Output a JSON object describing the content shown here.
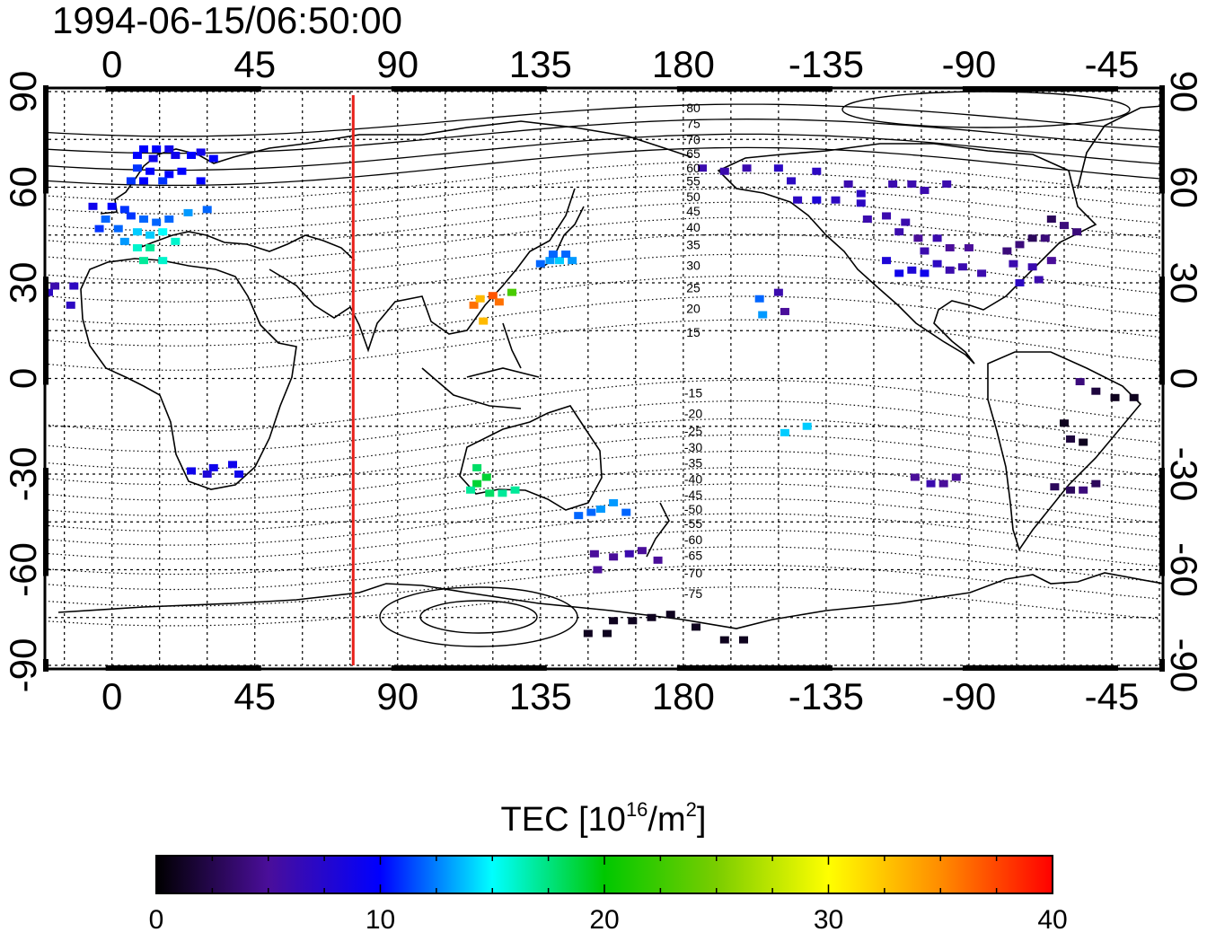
{
  "title": "1994-06-15/06:50:00",
  "map": {
    "lon_range": [
      -20,
      330
    ],
    "lat_range": [
      -90,
      90
    ],
    "lon_ticks": [
      0,
      45,
      90,
      135,
      180,
      225,
      270,
      315
    ],
    "lon_tick_labels": [
      "0",
      "45",
      "90",
      "135",
      "180",
      "-135",
      "-90",
      "-45"
    ],
    "lat_ticks": [
      90,
      60,
      30,
      0,
      -30,
      -60,
      -90
    ],
    "lat_tick_labels": [
      "90",
      "60",
      "30",
      "0",
      "-30",
      "-60",
      "-90"
    ],
    "grid": "dashed every 15 degrees",
    "meridian_line": {
      "lon": 76,
      "color": "#e8211a"
    },
    "contour_labels": [
      {
        "text": "80",
        "lat": 85
      },
      {
        "text": "75",
        "lat": 80
      },
      {
        "text": "70",
        "lat": 75
      },
      {
        "text": "65",
        "lat": 70.5
      },
      {
        "text": "60",
        "lat": 66
      },
      {
        "text": "55",
        "lat": 62
      },
      {
        "text": "50",
        "lat": 57
      },
      {
        "text": "45",
        "lat": 52.5
      },
      {
        "text": "40",
        "lat": 47.5
      },
      {
        "text": "35",
        "lat": 42
      },
      {
        "text": "30",
        "lat": 35.5
      },
      {
        "text": "25",
        "lat": 28.5
      },
      {
        "text": "20",
        "lat": 22
      },
      {
        "text": "15",
        "lat": 14.5
      },
      {
        "text": "-15",
        "lat": -4.5
      },
      {
        "text": "-20",
        "lat": -11
      },
      {
        "text": "-25",
        "lat": -16.5
      },
      {
        "text": "-30",
        "lat": -21.5
      },
      {
        "text": "-35",
        "lat": -26.5
      },
      {
        "text": "-40",
        "lat": -31.5
      },
      {
        "text": "-45",
        "lat": -36.5
      },
      {
        "text": "-50",
        "lat": -41
      },
      {
        "text": "-55",
        "lat": -45.5
      },
      {
        "text": "-60",
        "lat": -50.5
      },
      {
        "text": "-65",
        "lat": -55.5
      },
      {
        "text": "-70",
        "lat": -61
      },
      {
        "text": "-75",
        "lat": -67.5
      }
    ]
  },
  "tec_points": [
    [
      10,
      72,
      10
    ],
    [
      14,
      72,
      10
    ],
    [
      18,
      72,
      9
    ],
    [
      8,
      70,
      10
    ],
    [
      13,
      69,
      9
    ],
    [
      20,
      70,
      9
    ],
    [
      25,
      70,
      10
    ],
    [
      28,
      71,
      9
    ],
    [
      32,
      69,
      10
    ],
    [
      8,
      66,
      11
    ],
    [
      12,
      65,
      10
    ],
    [
      18,
      64,
      10
    ],
    [
      22,
      65,
      10
    ],
    [
      6,
      62,
      11
    ],
    [
      10,
      62,
      10
    ],
    [
      16,
      62,
      11
    ],
    [
      28,
      62,
      10
    ],
    [
      -6,
      54,
      9
    ],
    [
      0,
      54,
      10
    ],
    [
      4,
      53,
      11
    ],
    [
      -2,
      50,
      12
    ],
    [
      6,
      51,
      11
    ],
    [
      10,
      50,
      12
    ],
    [
      14,
      49,
      12
    ],
    [
      18,
      50,
      12
    ],
    [
      24,
      52,
      13
    ],
    [
      30,
      53,
      12
    ],
    [
      -4,
      47,
      11
    ],
    [
      2,
      47,
      12
    ],
    [
      8,
      46,
      14
    ],
    [
      12,
      45,
      14
    ],
    [
      16,
      46,
      15
    ],
    [
      20,
      43,
      16
    ],
    [
      4,
      43,
      13
    ],
    [
      8,
      41,
      16
    ],
    [
      12,
      41,
      17
    ],
    [
      10,
      37,
      17
    ],
    [
      16,
      37,
      16
    ],
    [
      -18,
      29,
      6
    ],
    [
      -12,
      29,
      7
    ],
    [
      -20,
      27,
      7
    ],
    [
      -13,
      23,
      7
    ],
    [
      25,
      -29,
      9
    ],
    [
      30,
      -30,
      8
    ],
    [
      32,
      -28,
      9
    ],
    [
      38,
      -27,
      9
    ],
    [
      40,
      -30,
      9
    ],
    [
      114,
      23,
      36
    ],
    [
      116,
      25,
      33
    ],
    [
      120,
      26,
      37
    ],
    [
      122,
      24,
      36
    ],
    [
      126,
      27,
      23
    ],
    [
      117,
      18,
      33
    ],
    [
      135,
      36,
      12
    ],
    [
      138,
      37,
      13
    ],
    [
      141,
      37,
      14
    ],
    [
      145,
      37,
      13
    ],
    [
      139,
      39,
      12
    ],
    [
      143,
      39,
      12
    ],
    [
      115,
      -28,
      18
    ],
    [
      115,
      -33,
      19
    ],
    [
      119,
      -36,
      18
    ],
    [
      123,
      -36,
      17
    ],
    [
      127,
      -35,
      17
    ],
    [
      118,
      -31,
      19
    ],
    [
      113,
      -35,
      17
    ],
    [
      147,
      -43,
      12
    ],
    [
      151,
      -42,
      12
    ],
    [
      154,
      -41,
      13
    ],
    [
      158,
      -39,
      13
    ],
    [
      162,
      -42,
      12
    ],
    [
      152,
      -55,
      5
    ],
    [
      158,
      -56,
      5
    ],
    [
      163,
      -55,
      6
    ],
    [
      167,
      -54,
      5
    ],
    [
      172,
      -57,
      5
    ],
    [
      153,
      -60,
      5
    ],
    [
      158,
      -76,
      1
    ],
    [
      164,
      -76,
      1
    ],
    [
      170,
      -75,
      1
    ],
    [
      176,
      -74,
      1
    ],
    [
      150,
      -80,
      1
    ],
    [
      156,
      -80,
      1
    ],
    [
      184,
      -78,
      1
    ],
    [
      193,
      -82,
      1
    ],
    [
      199,
      -82,
      1
    ],
    [
      186,
      66,
      6
    ],
    [
      193,
      65,
      6
    ],
    [
      200,
      66,
      6
    ],
    [
      210,
      66,
      7
    ],
    [
      214,
      62,
      7
    ],
    [
      222,
      65,
      7
    ],
    [
      232,
      61,
      6
    ],
    [
      246,
      61,
      6
    ],
    [
      252,
      61,
      6
    ],
    [
      256,
      59,
      6
    ],
    [
      263,
      61,
      6
    ],
    [
      216,
      56,
      7
    ],
    [
      222,
      56,
      8
    ],
    [
      228,
      56,
      7
    ],
    [
      236,
      55,
      7
    ],
    [
      236,
      58,
      7
    ],
    [
      238,
      50,
      6
    ],
    [
      244,
      51,
      6
    ],
    [
      250,
      49,
      6
    ],
    [
      248,
      46,
      6
    ],
    [
      254,
      44,
      5
    ],
    [
      260,
      44,
      6
    ],
    [
      256,
      40,
      6
    ],
    [
      264,
      41,
      5
    ],
    [
      270,
      41,
      5
    ],
    [
      244,
      37,
      8
    ],
    [
      248,
      33,
      9
    ],
    [
      252,
      34,
      8
    ],
    [
      256,
      33,
      9
    ],
    [
      260,
      36,
      7
    ],
    [
      264,
      34,
      6
    ],
    [
      268,
      35,
      6
    ],
    [
      274,
      33,
      6
    ],
    [
      282,
      40,
      4
    ],
    [
      286,
      42,
      4
    ],
    [
      290,
      44,
      3
    ],
    [
      294,
      44,
      4
    ],
    [
      300,
      48,
      4
    ],
    [
      304,
      46,
      4
    ],
    [
      296,
      50,
      3
    ],
    [
      284,
      36,
      6
    ],
    [
      290,
      35,
      6
    ],
    [
      296,
      37,
      5
    ],
    [
      286,
      30,
      7
    ],
    [
      292,
      31,
      6
    ],
    [
      204,
      25,
      12
    ],
    [
      210,
      27,
      6
    ],
    [
      205,
      20,
      13
    ],
    [
      212,
      21,
      5
    ],
    [
      212,
      -17,
      14
    ],
    [
      219,
      -15,
      14
    ],
    [
      253,
      -31,
      5
    ],
    [
      258,
      -33,
      6
    ],
    [
      262,
      -33,
      5
    ],
    [
      266,
      -31,
      5
    ],
    [
      305,
      -1,
      4
    ],
    [
      310,
      -4,
      2
    ],
    [
      316,
      -6,
      1
    ],
    [
      322,
      -6,
      1
    ],
    [
      300,
      -14,
      1
    ],
    [
      302,
      -19,
      2
    ],
    [
      306,
      -20,
      1
    ],
    [
      297,
      -34,
      3
    ],
    [
      302,
      -35,
      3
    ],
    [
      306,
      -35,
      4
    ],
    [
      310,
      -33,
      3
    ]
  ],
  "colorbar": {
    "title_main": "TEC  [10",
    "title_sup1": "16",
    "title_mid": "/m",
    "title_sup2": "2",
    "title_end": "]",
    "min": 0,
    "max": 40,
    "tick_labels": [
      "0",
      "10",
      "20",
      "30",
      "40"
    ],
    "colormap": [
      [
        0,
        "#000000"
      ],
      [
        5,
        "#4a0e9a"
      ],
      [
        10,
        "#0000ff"
      ],
      [
        15,
        "#00ffff"
      ],
      [
        20,
        "#00c800"
      ],
      [
        25,
        "#7acd00"
      ],
      [
        30,
        "#ffff00"
      ],
      [
        35,
        "#ff8c00"
      ],
      [
        40,
        "#ff0000"
      ]
    ]
  }
}
